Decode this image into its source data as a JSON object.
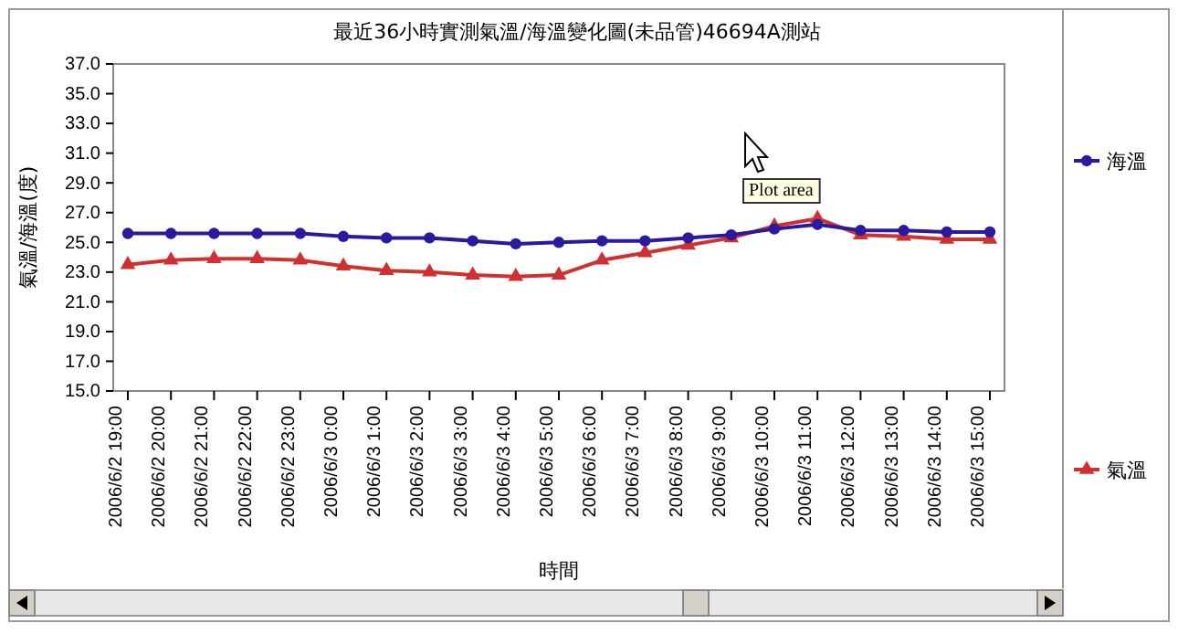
{
  "chart_data": {
    "type": "line",
    "title": "最近36小時實測氣溫/海溫變化圖(未品管)46694A測站",
    "xlabel": "時間",
    "ylabel": "氣溫/海溫(度)",
    "categories": [
      "2006/6/2 19:00",
      "2006/6/2 20:00",
      "2006/6/2 21:00",
      "2006/6/2 22:00",
      "2006/6/2 23:00",
      "2006/6/3 0:00",
      "2006/6/3 1:00",
      "2006/6/3 2:00",
      "2006/6/3 3:00",
      "2006/6/3 4:00",
      "2006/6/3 5:00",
      "2006/6/3 6:00",
      "2006/6/3 7:00",
      "2006/6/3 8:00",
      "2006/6/3 9:00",
      "2006/6/3 10:00",
      "2006/6/3 11:00",
      "2006/6/3 12:00",
      "2006/6/3 13:00",
      "2006/6/3 14:00",
      "2006/6/3 15:00"
    ],
    "series": [
      {
        "name": "海溫",
        "color": "#2a1aa0",
        "marker": "circle",
        "values": [
          25.6,
          25.6,
          25.6,
          25.6,
          25.6,
          25.4,
          25.3,
          25.3,
          25.1,
          24.9,
          25.0,
          25.1,
          25.1,
          25.3,
          25.5,
          25.9,
          26.2,
          25.8,
          25.8,
          25.7,
          25.7
        ]
      },
      {
        "name": "氣溫",
        "color": "#d03030",
        "marker": "triangle",
        "values": [
          23.5,
          23.8,
          23.9,
          23.9,
          23.8,
          23.4,
          23.1,
          23.0,
          22.8,
          22.7,
          22.8,
          23.8,
          24.3,
          24.8,
          25.3,
          26.1,
          26.6,
          25.5,
          25.4,
          25.2,
          25.2
        ]
      }
    ],
    "ylim": [
      15,
      37
    ],
    "yticks": [
      {
        "value": 15,
        "label": "15.0"
      },
      {
        "value": 17,
        "label": "17.0"
      },
      {
        "value": 19,
        "label": "19.0"
      },
      {
        "value": 21,
        "label": "21.0"
      },
      {
        "value": 23,
        "label": "23.0"
      },
      {
        "value": 25,
        "label": "25.0"
      },
      {
        "value": 27,
        "label": "27.0"
      },
      {
        "value": 29,
        "label": "29.0"
      },
      {
        "value": 31,
        "label": "31.0"
      },
      {
        "value": 33,
        "label": "33.0"
      },
      {
        "value": 35,
        "label": "35.0"
      },
      {
        "value": 37,
        "label": "37.0"
      }
    ],
    "grid": false,
    "legend": "right",
    "line_style": "solid",
    "annotations": [
      "Plot area"
    ]
  }
}
